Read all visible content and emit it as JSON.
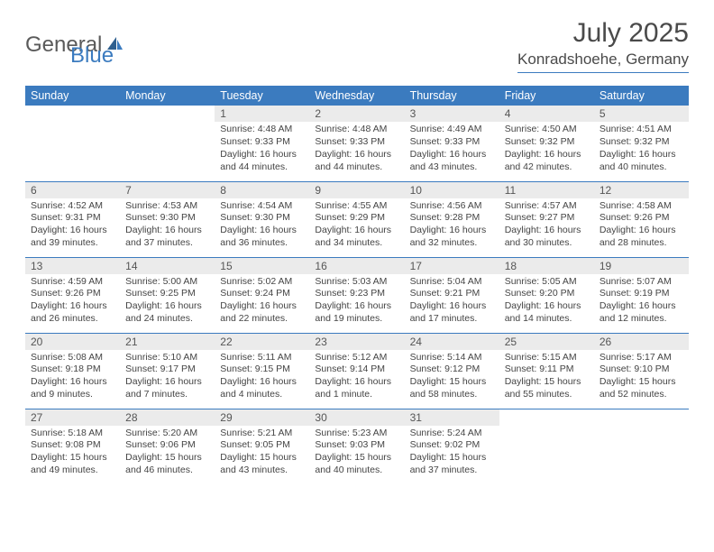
{
  "logo": {
    "text1": "General",
    "text2": "Blue"
  },
  "title": "July 2025",
  "location": "Konradshoehe, Germany",
  "colors": {
    "header_bg": "#3b7bbf",
    "header_text": "#ffffff",
    "daynum_bg": "#ebebeb",
    "border": "#3b7bbf",
    "body_text": "#444444",
    "title_text": "#4a4a4a"
  },
  "dayNames": [
    "Sunday",
    "Monday",
    "Tuesday",
    "Wednesday",
    "Thursday",
    "Friday",
    "Saturday"
  ],
  "weeks": [
    [
      null,
      null,
      {
        "n": "1",
        "sr": "4:48 AM",
        "ss": "9:33 PM",
        "dl": "16 hours and 44 minutes."
      },
      {
        "n": "2",
        "sr": "4:48 AM",
        "ss": "9:33 PM",
        "dl": "16 hours and 44 minutes."
      },
      {
        "n": "3",
        "sr": "4:49 AM",
        "ss": "9:33 PM",
        "dl": "16 hours and 43 minutes."
      },
      {
        "n": "4",
        "sr": "4:50 AM",
        "ss": "9:32 PM",
        "dl": "16 hours and 42 minutes."
      },
      {
        "n": "5",
        "sr": "4:51 AM",
        "ss": "9:32 PM",
        "dl": "16 hours and 40 minutes."
      }
    ],
    [
      {
        "n": "6",
        "sr": "4:52 AM",
        "ss": "9:31 PM",
        "dl": "16 hours and 39 minutes."
      },
      {
        "n": "7",
        "sr": "4:53 AM",
        "ss": "9:30 PM",
        "dl": "16 hours and 37 minutes."
      },
      {
        "n": "8",
        "sr": "4:54 AM",
        "ss": "9:30 PM",
        "dl": "16 hours and 36 minutes."
      },
      {
        "n": "9",
        "sr": "4:55 AM",
        "ss": "9:29 PM",
        "dl": "16 hours and 34 minutes."
      },
      {
        "n": "10",
        "sr": "4:56 AM",
        "ss": "9:28 PM",
        "dl": "16 hours and 32 minutes."
      },
      {
        "n": "11",
        "sr": "4:57 AM",
        "ss": "9:27 PM",
        "dl": "16 hours and 30 minutes."
      },
      {
        "n": "12",
        "sr": "4:58 AM",
        "ss": "9:26 PM",
        "dl": "16 hours and 28 minutes."
      }
    ],
    [
      {
        "n": "13",
        "sr": "4:59 AM",
        "ss": "9:26 PM",
        "dl": "16 hours and 26 minutes."
      },
      {
        "n": "14",
        "sr": "5:00 AM",
        "ss": "9:25 PM",
        "dl": "16 hours and 24 minutes."
      },
      {
        "n": "15",
        "sr": "5:02 AM",
        "ss": "9:24 PM",
        "dl": "16 hours and 22 minutes."
      },
      {
        "n": "16",
        "sr": "5:03 AM",
        "ss": "9:23 PM",
        "dl": "16 hours and 19 minutes."
      },
      {
        "n": "17",
        "sr": "5:04 AM",
        "ss": "9:21 PM",
        "dl": "16 hours and 17 minutes."
      },
      {
        "n": "18",
        "sr": "5:05 AM",
        "ss": "9:20 PM",
        "dl": "16 hours and 14 minutes."
      },
      {
        "n": "19",
        "sr": "5:07 AM",
        "ss": "9:19 PM",
        "dl": "16 hours and 12 minutes."
      }
    ],
    [
      {
        "n": "20",
        "sr": "5:08 AM",
        "ss": "9:18 PM",
        "dl": "16 hours and 9 minutes."
      },
      {
        "n": "21",
        "sr": "5:10 AM",
        "ss": "9:17 PM",
        "dl": "16 hours and 7 minutes."
      },
      {
        "n": "22",
        "sr": "5:11 AM",
        "ss": "9:15 PM",
        "dl": "16 hours and 4 minutes."
      },
      {
        "n": "23",
        "sr": "5:12 AM",
        "ss": "9:14 PM",
        "dl": "16 hours and 1 minute."
      },
      {
        "n": "24",
        "sr": "5:14 AM",
        "ss": "9:12 PM",
        "dl": "15 hours and 58 minutes."
      },
      {
        "n": "25",
        "sr": "5:15 AM",
        "ss": "9:11 PM",
        "dl": "15 hours and 55 minutes."
      },
      {
        "n": "26",
        "sr": "5:17 AM",
        "ss": "9:10 PM",
        "dl": "15 hours and 52 minutes."
      }
    ],
    [
      {
        "n": "27",
        "sr": "5:18 AM",
        "ss": "9:08 PM",
        "dl": "15 hours and 49 minutes."
      },
      {
        "n": "28",
        "sr": "5:20 AM",
        "ss": "9:06 PM",
        "dl": "15 hours and 46 minutes."
      },
      {
        "n": "29",
        "sr": "5:21 AM",
        "ss": "9:05 PM",
        "dl": "15 hours and 43 minutes."
      },
      {
        "n": "30",
        "sr": "5:23 AM",
        "ss": "9:03 PM",
        "dl": "15 hours and 40 minutes."
      },
      {
        "n": "31",
        "sr": "5:24 AM",
        "ss": "9:02 PM",
        "dl": "15 hours and 37 minutes."
      },
      null,
      null
    ]
  ],
  "labels": {
    "sunrise": "Sunrise:",
    "sunset": "Sunset:",
    "daylight": "Daylight:"
  }
}
